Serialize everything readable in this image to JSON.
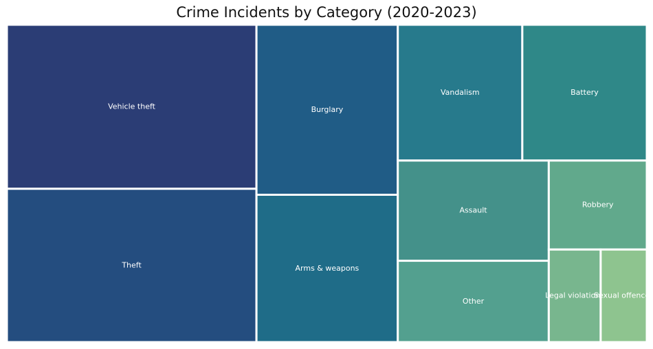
{
  "chart_data": {
    "type": "treemap",
    "title": "Crime Incidents by Category (2020-2023)",
    "cells": [
      {
        "label": "Vehicle theft",
        "value": 2300,
        "color": "#2b3d75"
      },
      {
        "label": "Theft",
        "value": 2150,
        "color": "#244d7f"
      },
      {
        "label": "Burglary",
        "value": 1350,
        "color": "#205c86"
      },
      {
        "label": "Arms & weapons",
        "value": 1170,
        "color": "#1f6c88"
      },
      {
        "label": "Vandalism",
        "value": 950,
        "color": "#277a8c"
      },
      {
        "label": "Battery",
        "value": 950,
        "color": "#2f8888"
      },
      {
        "label": "Assault",
        "value": 850,
        "color": "#44918a"
      },
      {
        "label": "Other",
        "value": 690,
        "color": "#53a08f"
      },
      {
        "label": "Robbery",
        "value": 490,
        "color": "#61a98c"
      },
      {
        "label": "Legal violations",
        "value": 270,
        "color": "#78b68e"
      },
      {
        "label": "Sexual offences",
        "value": 240,
        "color": "#8ec48f"
      }
    ]
  }
}
